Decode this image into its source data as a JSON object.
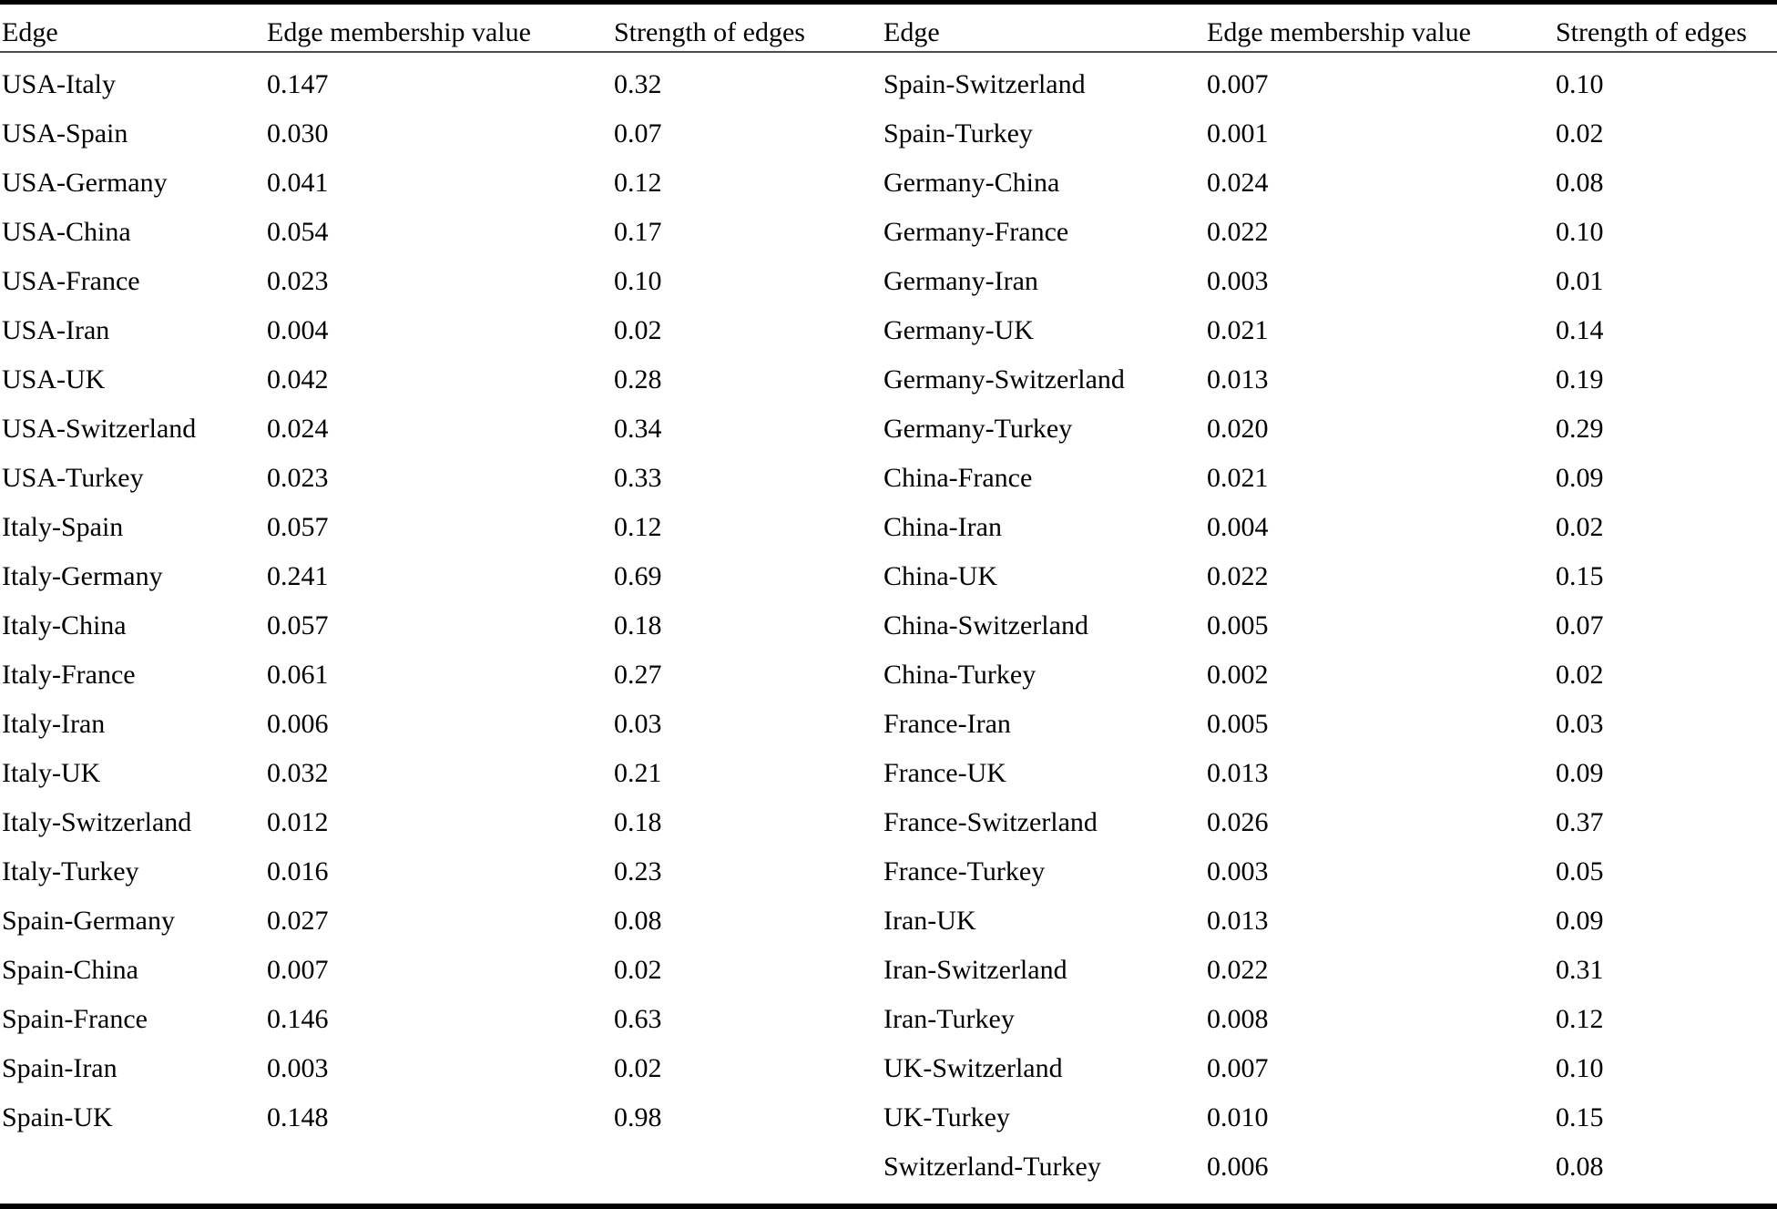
{
  "table": {
    "headers": [
      "Edge",
      "Edge membership value",
      "Strength of edges"
    ],
    "left_rows": [
      [
        "USA-Italy",
        "0.147",
        "0.32"
      ],
      [
        "USA-Spain",
        "0.030",
        "0.07"
      ],
      [
        "USA-Germany",
        "0.041",
        "0.12"
      ],
      [
        "USA-China",
        "0.054",
        "0.17"
      ],
      [
        "USA-France",
        "0.023",
        "0.10"
      ],
      [
        "USA-Iran",
        "0.004",
        "0.02"
      ],
      [
        "USA-UK",
        "0.042",
        "0.28"
      ],
      [
        "USA-Switzerland",
        "0.024",
        "0.34"
      ],
      [
        "USA-Turkey",
        "0.023",
        "0.33"
      ],
      [
        "Italy-Spain",
        "0.057",
        "0.12"
      ],
      [
        "Italy-Germany",
        "0.241",
        "0.69"
      ],
      [
        "Italy-China",
        "0.057",
        "0.18"
      ],
      [
        "Italy-France",
        "0.061",
        "0.27"
      ],
      [
        "Italy-Iran",
        "0.006",
        "0.03"
      ],
      [
        "Italy-UK",
        "0.032",
        "0.21"
      ],
      [
        "Italy-Switzerland",
        "0.012",
        "0.18"
      ],
      [
        "Italy-Turkey",
        "0.016",
        "0.23"
      ],
      [
        "Spain-Germany",
        "0.027",
        "0.08"
      ],
      [
        "Spain-China",
        "0.007",
        "0.02"
      ],
      [
        "Spain-France",
        "0.146",
        "0.63"
      ],
      [
        "Spain-Iran",
        "0.003",
        "0.02"
      ],
      [
        "Spain-UK",
        "0.148",
        "0.98"
      ]
    ],
    "right_rows": [
      [
        "Spain-Switzerland",
        "0.007",
        "0.10"
      ],
      [
        "Spain-Turkey",
        "0.001",
        "0.02"
      ],
      [
        "Germany-China",
        "0.024",
        "0.08"
      ],
      [
        "Germany-France",
        "0.022",
        "0.10"
      ],
      [
        "Germany-Iran",
        "0.003",
        "0.01"
      ],
      [
        "Germany-UK",
        "0.021",
        "0.14"
      ],
      [
        "Germany-Switzerland",
        "0.013",
        "0.19"
      ],
      [
        "Germany-Turkey",
        "0.020",
        "0.29"
      ],
      [
        "China-France",
        "0.021",
        "0.09"
      ],
      [
        "China-Iran",
        "0.004",
        "0.02"
      ],
      [
        "China-UK",
        "0.022",
        "0.15"
      ],
      [
        "China-Switzerland",
        "0.005",
        "0.07"
      ],
      [
        "China-Turkey",
        "0.002",
        "0.02"
      ],
      [
        "France-Iran",
        "0.005",
        "0.03"
      ],
      [
        "France-UK",
        "0.013",
        "0.09"
      ],
      [
        "France-Switzerland",
        "0.026",
        "0.37"
      ],
      [
        "France-Turkey",
        "0.003",
        "0.05"
      ],
      [
        "Iran-UK",
        "0.013",
        "0.09"
      ],
      [
        "Iran-Switzerland",
        "0.022",
        "0.31"
      ],
      [
        "Iran-Turkey",
        "0.008",
        "0.12"
      ],
      [
        "UK-Switzerland",
        "0.007",
        "0.10"
      ],
      [
        "UK-Turkey",
        "0.010",
        "0.15"
      ],
      [
        "Switzerland-Turkey",
        "0.006",
        "0.08"
      ]
    ],
    "colors": {
      "text": "#000000",
      "background": "#ffffff",
      "thick_rule": "#000000",
      "header_rule": "#4d4d4d"
    }
  }
}
